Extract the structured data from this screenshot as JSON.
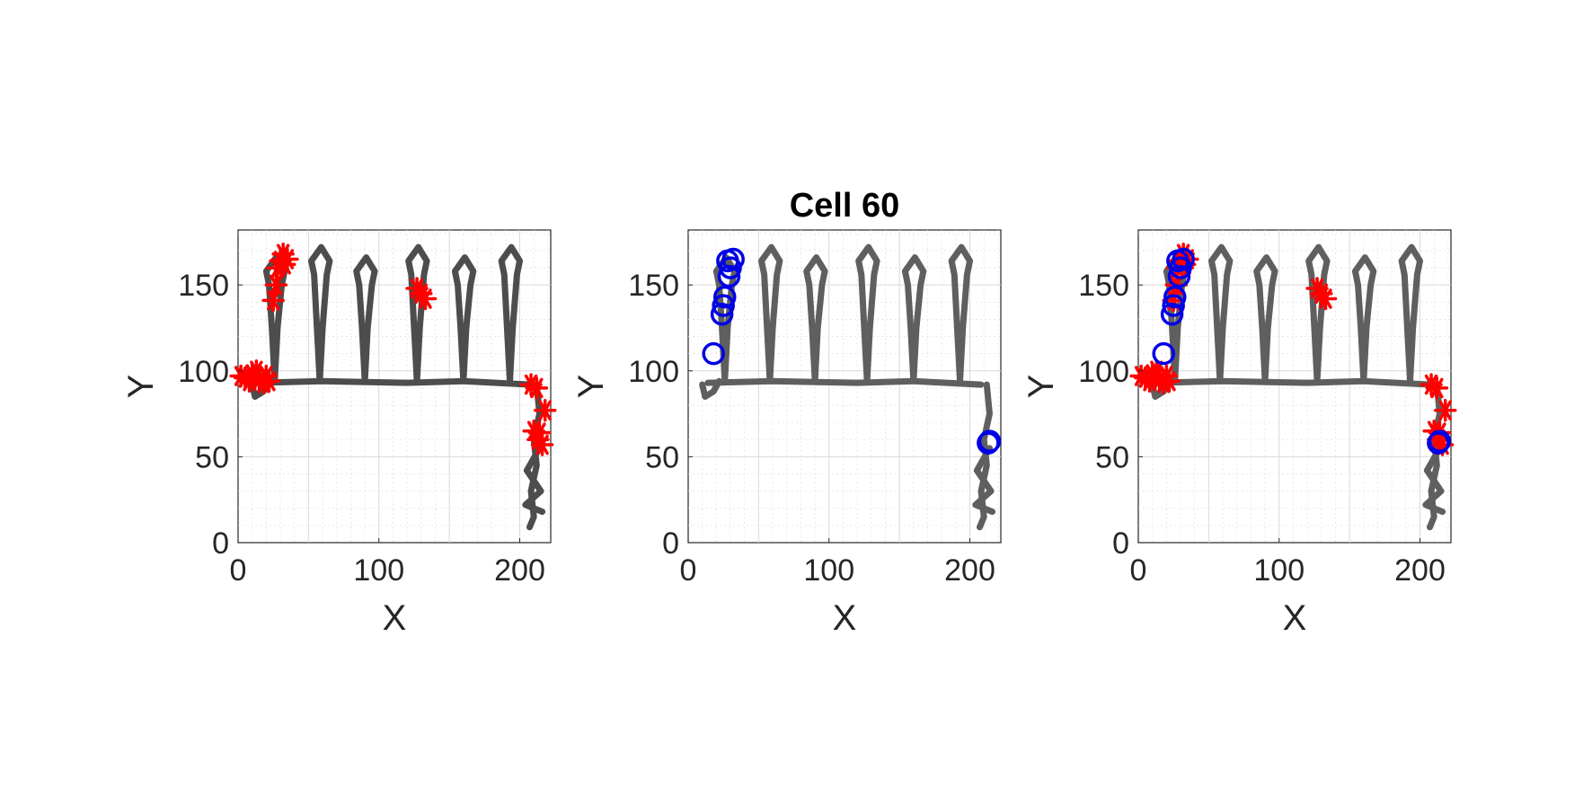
{
  "figure": {
    "title": "Cell 60",
    "colors": {
      "trajectory_dark": "#4d4d4d",
      "trajectory_light": "#5f5f5f",
      "spike_marker": "#ff0000",
      "field_marker": "#0000e6",
      "axis": "#262626"
    }
  },
  "chart_data": [
    {
      "type": "scatter",
      "panel": "left",
      "title": "",
      "xlabel": "X",
      "ylabel": "Y",
      "xlim": [
        0,
        222
      ],
      "ylim": [
        0,
        182
      ],
      "xticks": [
        "0",
        "100",
        "200"
      ],
      "yticks": [
        "0",
        "50",
        "100",
        "150"
      ],
      "grid": true,
      "legend": "none",
      "trajectory_color": "trajectory_dark",
      "series": [
        {
          "marker": "asterisk",
          "color": "spike_marker",
          "points": [
            [
              2,
              97
            ],
            [
              5,
              96
            ],
            [
              8,
              94
            ],
            [
              10,
              98
            ],
            [
              13,
              100
            ],
            [
              15,
              95
            ],
            [
              18,
              93
            ],
            [
              20,
              97
            ],
            [
              22,
              94
            ],
            [
              25,
              141
            ],
            [
              27,
              150
            ],
            [
              28,
              160
            ],
            [
              30,
              164
            ],
            [
              32,
              168
            ],
            [
              33,
              162
            ],
            [
              35,
              165
            ],
            [
              127,
              148
            ],
            [
              130,
              145
            ],
            [
              133,
              142
            ],
            [
              208,
              92
            ],
            [
              212,
              90
            ],
            [
              210,
              65
            ],
            [
              213,
              60
            ],
            [
              214,
              64
            ],
            [
              216,
              57
            ],
            [
              218,
              77
            ]
          ]
        }
      ]
    },
    {
      "type": "scatter",
      "panel": "middle",
      "title": "Cell 60",
      "xlabel": "X",
      "ylabel": "Y",
      "xlim": [
        0,
        222
      ],
      "ylim": [
        0,
        182
      ],
      "xticks": [
        "0",
        "100",
        "200"
      ],
      "yticks": [
        "0",
        "50",
        "100",
        "150"
      ],
      "grid": true,
      "legend": "none",
      "trajectory_color": "trajectory_light",
      "series": [
        {
          "marker": "circle",
          "color": "field_marker",
          "points": [
            [
              18,
              110
            ],
            [
              24,
              133
            ],
            [
              25,
              138
            ],
            [
              26,
              143
            ],
            [
              29,
              155
            ],
            [
              30,
              160
            ],
            [
              28,
              164
            ],
            [
              32,
              165
            ],
            [
              213,
              58
            ],
            [
              214,
              59
            ]
          ]
        }
      ]
    },
    {
      "type": "scatter",
      "panel": "right",
      "title": "",
      "xlabel": "X",
      "ylabel": "Y",
      "xlim": [
        0,
        222
      ],
      "ylim": [
        0,
        182
      ],
      "xticks": [
        "0",
        "100",
        "200"
      ],
      "yticks": [
        "0",
        "50",
        "100",
        "150"
      ],
      "grid": true,
      "legend": "none",
      "trajectory_color": "trajectory_light",
      "series": [
        {
          "marker": "asterisk",
          "color": "spike_marker",
          "points": [
            [
              2,
              97
            ],
            [
              5,
              96
            ],
            [
              8,
              94
            ],
            [
              10,
              98
            ],
            [
              13,
              100
            ],
            [
              15,
              95
            ],
            [
              18,
              93
            ],
            [
              20,
              97
            ],
            [
              22,
              94
            ],
            [
              25,
              141
            ],
            [
              27,
              150
            ],
            [
              28,
              160
            ],
            [
              30,
              164
            ],
            [
              32,
              168
            ],
            [
              33,
              162
            ],
            [
              35,
              165
            ],
            [
              127,
              148
            ],
            [
              130,
              145
            ],
            [
              133,
              142
            ],
            [
              208,
              92
            ],
            [
              212,
              90
            ],
            [
              210,
              65
            ],
            [
              213,
              60
            ],
            [
              214,
              64
            ],
            [
              216,
              57
            ],
            [
              218,
              77
            ]
          ]
        },
        {
          "marker": "circle",
          "color": "field_marker",
          "points": [
            [
              18,
              110
            ],
            [
              24,
              133
            ],
            [
              25,
              138
            ],
            [
              26,
              143
            ],
            [
              29,
              155
            ],
            [
              30,
              160
            ],
            [
              28,
              164
            ],
            [
              32,
              165
            ],
            [
              213,
              58
            ],
            [
              214,
              59
            ]
          ]
        }
      ]
    }
  ]
}
